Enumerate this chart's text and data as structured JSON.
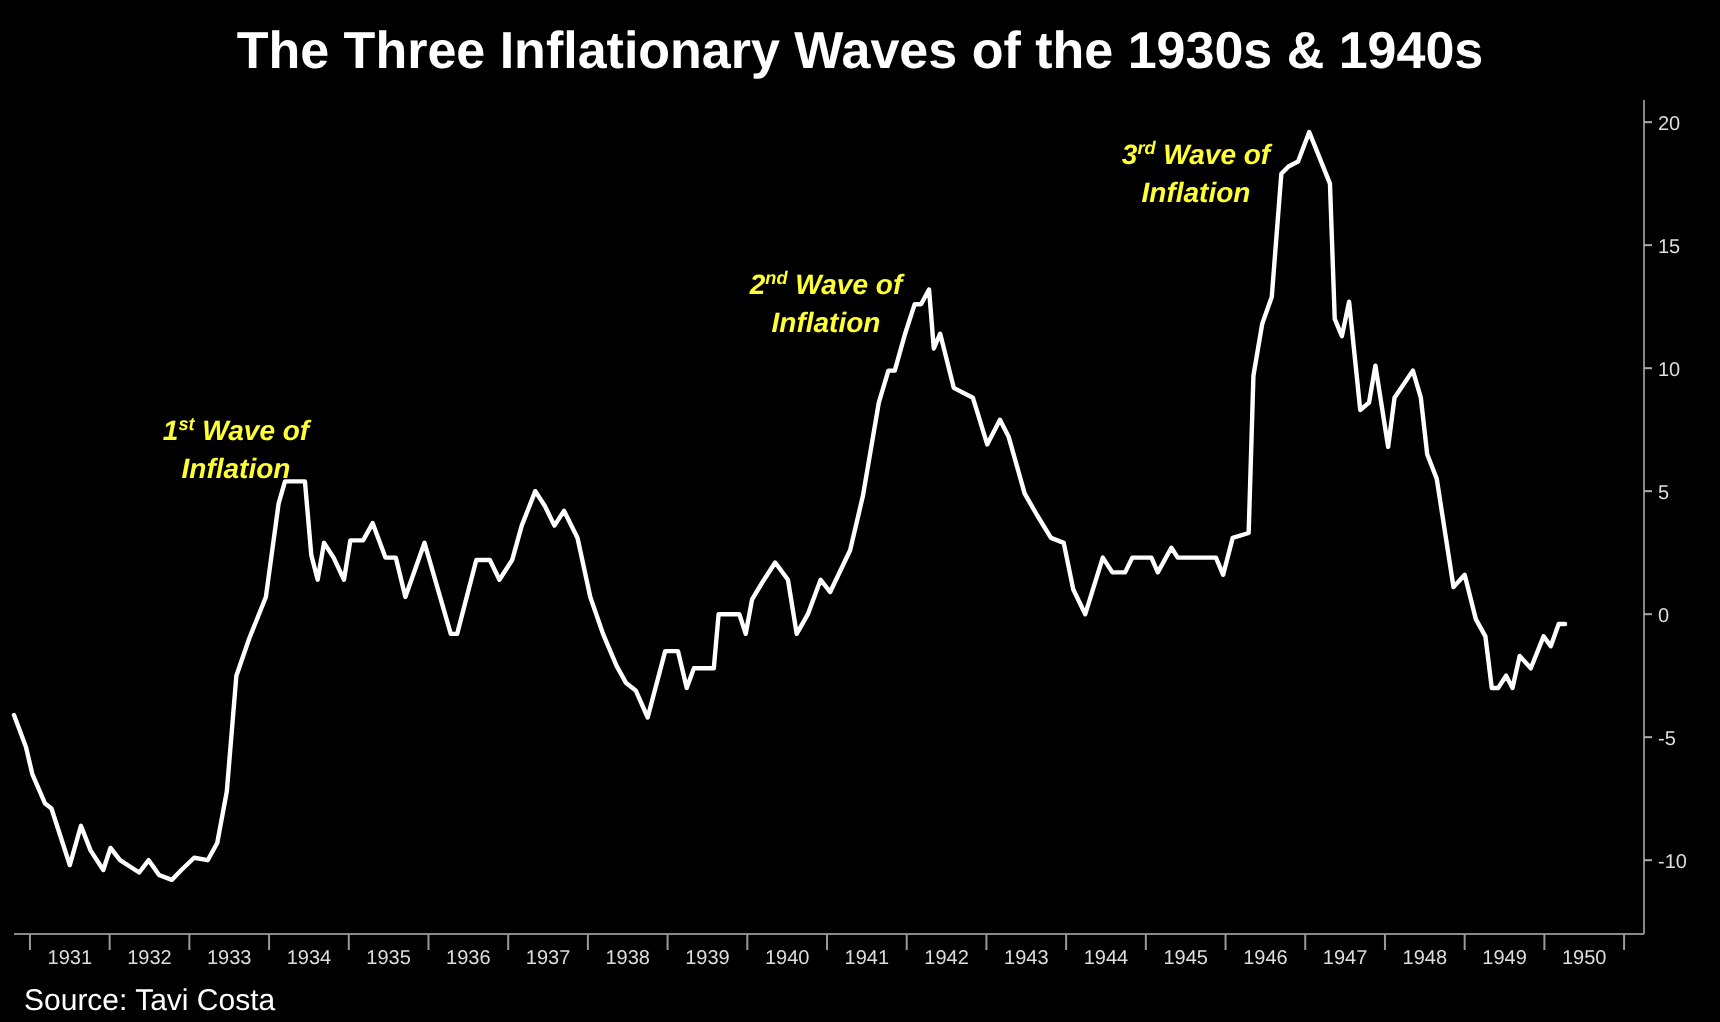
{
  "chart_data": {
    "type": "line",
    "title": "The Three Inflationary Waves of the 1930s & 1940s",
    "series": [
      {
        "color": "#ffffff",
        "x": [
          1930.8,
          1930.95,
          1931.03,
          1931.19,
          1931.27,
          1931.4,
          1931.5,
          1931.64,
          1931.76,
          1931.92,
          1932.01,
          1932.13,
          1932.37,
          1932.49,
          1932.62,
          1932.78,
          1932.9,
          1933.06,
          1933.23,
          1933.35,
          1933.47,
          1933.59,
          1933.75,
          1933.96,
          1934.12,
          1934.2,
          1934.45,
          1934.53,
          1934.61,
          1934.69,
          1934.81,
          1934.94,
          1935.02,
          1935.18,
          1935.3,
          1935.46,
          1935.59,
          1935.71,
          1935.95,
          1936.28,
          1936.36,
          1936.6,
          1936.77,
          1936.89,
          1937.05,
          1937.17,
          1937.34,
          1937.46,
          1937.58,
          1937.7,
          1937.87,
          1938.03,
          1938.19,
          1938.36,
          1938.48,
          1938.6,
          1938.75,
          1938.97,
          1939.13,
          1939.24,
          1939.33,
          1939.58,
          1939.64,
          1939.9,
          1939.98,
          1940.06,
          1940.19,
          1940.35,
          1940.51,
          1940.62,
          1940.76,
          1940.92,
          1941.04,
          1941.29,
          1941.45,
          1941.65,
          1941.77,
          1941.85,
          1941.98,
          1942.1,
          1942.18,
          1942.28,
          1942.34,
          1942.42,
          1942.59,
          1942.83,
          1943.01,
          1943.17,
          1943.28,
          1943.48,
          1943.64,
          1943.81,
          1943.97,
          1944.09,
          1944.24,
          1944.46,
          1944.58,
          1944.74,
          1944.83,
          1945.07,
          1945.15,
          1945.32,
          1945.4,
          1945.88,
          1945.97,
          1946.09,
          1946.29,
          1946.35,
          1946.46,
          1946.58,
          1946.7,
          1946.79,
          1946.91,
          1947.05,
          1947.31,
          1947.37,
          1947.46,
          1947.55,
          1947.69,
          1947.8,
          1947.88,
          1948.04,
          1948.12,
          1948.35,
          1948.45,
          1948.53,
          1948.65,
          1948.86,
          1949.0,
          1949.14,
          1949.26,
          1949.34,
          1949.42,
          1949.52,
          1949.6,
          1949.69,
          1949.83,
          1949.99,
          1950.08,
          1950.18,
          1950.26
        ],
        "values": [
          -4.1,
          -5.4,
          -6.5,
          -7.7,
          -7.9,
          -9.2,
          -10.2,
          -8.6,
          -9.6,
          -10.4,
          -9.5,
          -10.0,
          -10.5,
          -10.0,
          -10.6,
          -10.8,
          -10.4,
          -9.9,
          -10.0,
          -9.3,
          -7.2,
          -2.5,
          -1.0,
          0.7,
          4.5,
          5.4,
          5.4,
          2.4,
          1.4,
          2.9,
          2.3,
          1.4,
          3.0,
          3.0,
          3.7,
          2.3,
          2.3,
          0.7,
          2.9,
          -0.8,
          -0.8,
          2.2,
          2.2,
          1.4,
          2.2,
          3.6,
          5.0,
          4.4,
          3.6,
          4.2,
          3.1,
          0.7,
          -0.8,
          -2.1,
          -2.8,
          -3.1,
          -4.2,
          -1.5,
          -1.5,
          -3.0,
          -2.2,
          -2.2,
          0.0,
          0.0,
          -0.8,
          0.6,
          1.3,
          2.1,
          1.4,
          -0.8,
          0.0,
          1.4,
          0.9,
          2.6,
          4.8,
          8.6,
          9.9,
          9.9,
          11.4,
          12.6,
          12.6,
          13.2,
          10.8,
          11.4,
          9.2,
          8.8,
          6.9,
          7.9,
          7.2,
          4.9,
          4.0,
          3.1,
          2.9,
          1.0,
          0.0,
          2.3,
          1.7,
          1.7,
          2.3,
          2.3,
          1.7,
          2.7,
          2.3,
          2.3,
          1.6,
          3.1,
          3.3,
          9.7,
          11.8,
          12.9,
          17.9,
          18.2,
          18.4,
          19.6,
          17.5,
          12.0,
          11.3,
          12.7,
          8.3,
          8.6,
          10.1,
          6.8,
          8.8,
          9.9,
          8.8,
          6.5,
          5.5,
          1.1,
          1.6,
          -0.2,
          -0.9,
          -3.0,
          -3.0,
          -2.5,
          -3.0,
          -1.7,
          -2.2,
          -0.9,
          -1.3,
          -0.4,
          -0.4
        ]
      }
    ],
    "xlim": [
      1930.8,
      1951.25
    ],
    "xticks": [
      {
        "value": 1931,
        "label": null
      },
      {
        "value": 1931.5,
        "label": "1931"
      },
      {
        "value": 1932,
        "label": null
      },
      {
        "value": 1932.5,
        "label": "1932"
      },
      {
        "value": 1933,
        "label": null
      },
      {
        "value": 1933.5,
        "label": "1933"
      },
      {
        "value": 1934,
        "label": null
      },
      {
        "value": 1934.5,
        "label": "1934"
      },
      {
        "value": 1935,
        "label": null
      },
      {
        "value": 1935.5,
        "label": "1935"
      },
      {
        "value": 1936,
        "label": null
      },
      {
        "value": 1936.5,
        "label": "1936"
      },
      {
        "value": 1937,
        "label": null
      },
      {
        "value": 1937.5,
        "label": "1937"
      },
      {
        "value": 1938,
        "label": null
      },
      {
        "value": 1938.5,
        "label": "1938"
      },
      {
        "value": 1939,
        "label": null
      },
      {
        "value": 1939.5,
        "label": "1939"
      },
      {
        "value": 1940,
        "label": null
      },
      {
        "value": 1940.5,
        "label": "1940"
      },
      {
        "value": 1941,
        "label": null
      },
      {
        "value": 1941.5,
        "label": "1941"
      },
      {
        "value": 1942,
        "label": null
      },
      {
        "value": 1942.5,
        "label": "1942"
      },
      {
        "value": 1943,
        "label": null
      },
      {
        "value": 1943.5,
        "label": "1943"
      },
      {
        "value": 1944,
        "label": null
      },
      {
        "value": 1944.5,
        "label": "1944"
      },
      {
        "value": 1945,
        "label": null
      },
      {
        "value": 1945.5,
        "label": "1945"
      },
      {
        "value": 1946,
        "label": null
      },
      {
        "value": 1946.5,
        "label": "1946"
      },
      {
        "value": 1947,
        "label": null
      },
      {
        "value": 1947.5,
        "label": "1947"
      },
      {
        "value": 1948,
        "label": null
      },
      {
        "value": 1948.5,
        "label": "1948"
      },
      {
        "value": 1949,
        "label": null
      },
      {
        "value": 1949.5,
        "label": "1949"
      },
      {
        "value": 1950,
        "label": null
      },
      {
        "value": 1950.5,
        "label": "1950"
      },
      {
        "value": 1951,
        "label": null
      }
    ],
    "ylim": [
      -13,
      20.9
    ],
    "yticks": [
      -10,
      -5,
      0,
      5,
      10,
      15,
      20
    ],
    "grid": false,
    "line_style": "solid",
    "annotations": [
      "1$^{st}$ Wave of Inflation",
      "2$^{nd}$ Wave of Inflation",
      "3$^{rd}$ Wave of Inflation",
      "Source: Tavi Costa"
    ]
  }
}
